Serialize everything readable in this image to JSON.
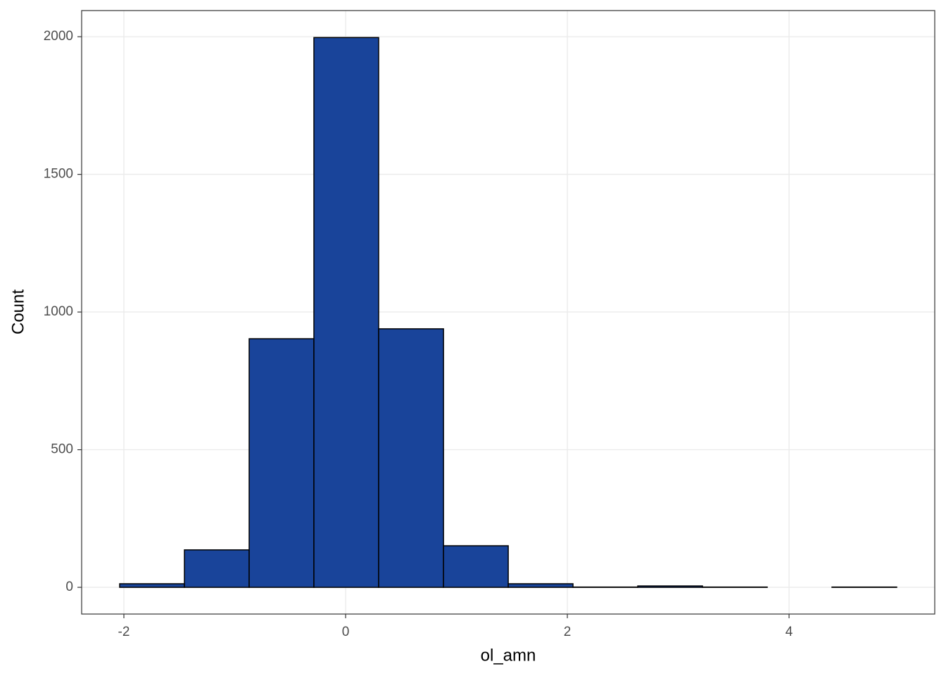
{
  "chart_data": {
    "type": "histogram",
    "x_label": "ol_amn",
    "y_label": "Count",
    "bins": [
      -2.038,
      -1.454,
      -0.87,
      -0.286,
      0.298,
      0.883,
      1.467,
      2.051,
      2.635,
      3.219,
      3.803,
      4.387,
      4.971
    ],
    "values": [
      13,
      136,
      903,
      1997,
      939,
      151,
      13,
      1,
      5,
      1,
      0,
      1
    ],
    "color": "#19449a",
    "edge_color": "#000000",
    "xlim": [
      -2.381,
      5.314
    ],
    "xticks": [
      -2,
      0,
      2,
      4
    ],
    "ylim": [
      -97,
      2095
    ],
    "yticks": [
      0,
      500,
      1000,
      1500,
      2000
    ],
    "grid": true
  }
}
